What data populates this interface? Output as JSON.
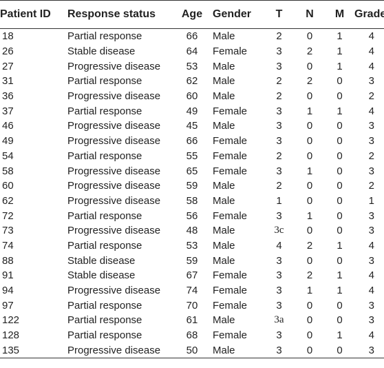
{
  "table": {
    "headers": {
      "patient_id": "Patient ID",
      "response_status": "Response status",
      "age": "Age",
      "gender": "Gender",
      "t": "T",
      "n": "N",
      "m": "M",
      "grade": "Grade"
    },
    "rows": [
      {
        "id": "18",
        "status": "Partial response",
        "age": "66",
        "gender": "Male",
        "t": "2",
        "n": "0",
        "m": "1",
        "grade": "4"
      },
      {
        "id": "26",
        "status": "Stable disease",
        "age": "64",
        "gender": "Female",
        "t": "3",
        "n": "2",
        "m": "1",
        "grade": "4"
      },
      {
        "id": "27",
        "status": "Progressive disease",
        "age": "53",
        "gender": "Male",
        "t": "3",
        "n": "0",
        "m": "1",
        "grade": "4"
      },
      {
        "id": "31",
        "status": "Partial response",
        "age": "62",
        "gender": "Male",
        "t": "2",
        "n": "2",
        "m": "0",
        "grade": "3"
      },
      {
        "id": "36",
        "status": "Progressive disease",
        "age": "60",
        "gender": "Male",
        "t": "2",
        "n": "0",
        "m": "0",
        "grade": "2"
      },
      {
        "id": "37",
        "status": "Partial response",
        "age": "49",
        "gender": "Female",
        "t": "3",
        "n": "1",
        "m": "1",
        "grade": "4"
      },
      {
        "id": "46",
        "status": "Progressive disease",
        "age": "45",
        "gender": "Male",
        "t": "3",
        "n": "0",
        "m": "0",
        "grade": "3"
      },
      {
        "id": "49",
        "status": "Progressive disease",
        "age": "66",
        "gender": "Female",
        "t": "3",
        "n": "0",
        "m": "0",
        "grade": "3"
      },
      {
        "id": "54",
        "status": "Partial response",
        "age": "55",
        "gender": "Female",
        "t": "2",
        "n": "0",
        "m": "0",
        "grade": "2"
      },
      {
        "id": "58",
        "status": "Progressive disease",
        "age": "65",
        "gender": "Female",
        "t": "3",
        "n": "1",
        "m": "0",
        "grade": "3"
      },
      {
        "id": "60",
        "status": "Progressive disease",
        "age": "59",
        "gender": "Male",
        "t": "2",
        "n": "0",
        "m": "0",
        "grade": "2"
      },
      {
        "id": "62",
        "status": "Progressive disease",
        "age": "58",
        "gender": "Male",
        "t": "1",
        "n": "0",
        "m": "0",
        "grade": "1"
      },
      {
        "id": "72",
        "status": "Partial response",
        "age": "56",
        "gender": "Female",
        "t": "3",
        "n": "1",
        "m": "0",
        "grade": "3"
      },
      {
        "id": "73",
        "status": "Progressive disease",
        "age": "48",
        "gender": "Male",
        "t": "3c",
        "n": "0",
        "m": "0",
        "grade": "3"
      },
      {
        "id": "74",
        "status": "Partial response",
        "age": "53",
        "gender": "Male",
        "t": "4",
        "n": "2",
        "m": "1",
        "grade": "4"
      },
      {
        "id": "88",
        "status": "Stable disease",
        "age": "59",
        "gender": "Male",
        "t": "3",
        "n": "0",
        "m": "0",
        "grade": "3"
      },
      {
        "id": "91",
        "status": "Stable disease",
        "age": "67",
        "gender": "Female",
        "t": "3",
        "n": "2",
        "m": "1",
        "grade": "4"
      },
      {
        "id": "94",
        "status": "Progressive disease",
        "age": "74",
        "gender": "Female",
        "t": "3",
        "n": "1",
        "m": "1",
        "grade": "4"
      },
      {
        "id": "97",
        "status": "Partial response",
        "age": "70",
        "gender": "Female",
        "t": "3",
        "n": "0",
        "m": "0",
        "grade": "3"
      },
      {
        "id": "122",
        "status": "Partial response",
        "age": "61",
        "gender": "Male",
        "t": "3a",
        "n": "0",
        "m": "0",
        "grade": "3"
      },
      {
        "id": "128",
        "status": "Partial response",
        "age": "68",
        "gender": "Female",
        "t": "3",
        "n": "0",
        "m": "1",
        "grade": "4"
      },
      {
        "id": "135",
        "status": "Progressive disease",
        "age": "50",
        "gender": "Male",
        "t": "3",
        "n": "0",
        "m": "0",
        "grade": "3"
      }
    ]
  }
}
